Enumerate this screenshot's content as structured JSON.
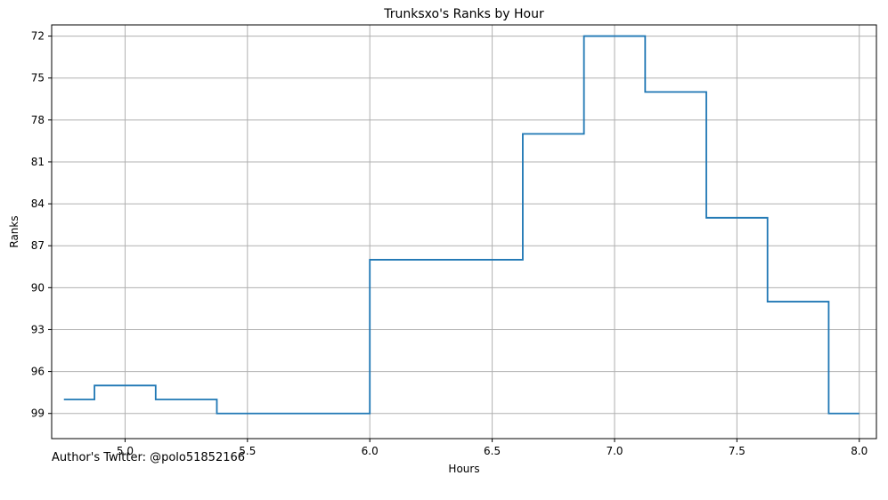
{
  "chart_data": {
    "type": "line",
    "step": "post",
    "title": "Trunksxo's Ranks by Hour",
    "xlabel": "Hours",
    "ylabel": "Ranks",
    "xlim": [
      4.7,
      8.07
    ],
    "ylim": [
      100.8,
      71.2
    ],
    "y_inverted": true,
    "xticks": [
      "5.0",
      "5.5",
      "6.0",
      "6.5",
      "7.0",
      "7.5",
      "8.0"
    ],
    "yticks": [
      "72",
      "75",
      "78",
      "81",
      "84",
      "87",
      "90",
      "93",
      "96",
      "99"
    ],
    "grid": true,
    "series": [
      {
        "color": "#1f77b4",
        "x": [
          4.75,
          4.875,
          5.125,
          5.375,
          6.0,
          6.625,
          6.875,
          7.125,
          7.375,
          7.625,
          7.875,
          8.0
        ],
        "y": [
          98,
          97,
          98,
          99,
          88,
          79,
          72,
          76,
          85,
          91,
          99,
          99
        ]
      }
    ]
  },
  "footnote": "Author's Twitter: @polo51852166"
}
